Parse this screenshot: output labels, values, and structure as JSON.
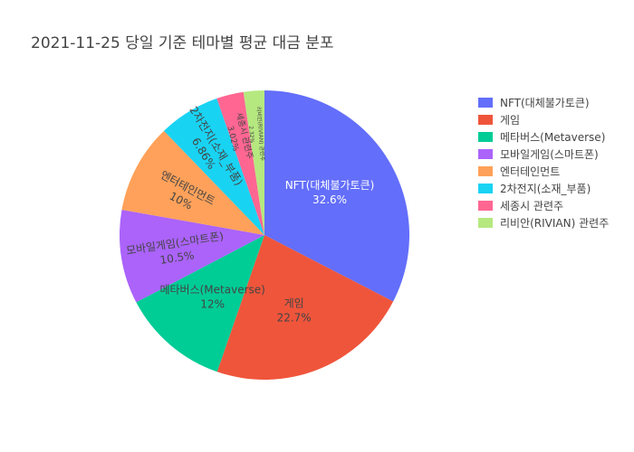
{
  "chart_data": {
    "type": "pie",
    "title": "2021-11-25 당일 기준 테마별 평균 대금 분포",
    "slices": [
      {
        "label": "NFT(대체불가토큰)",
        "value": 32.6,
        "text": "32.6%",
        "color": "#636efa"
      },
      {
        "label": "게임",
        "value": 22.7,
        "text": "22.7%",
        "color": "#EF553B"
      },
      {
        "label": "메타버스(Metaverse)",
        "value": 12,
        "text": "12%",
        "color": "#00cc96"
      },
      {
        "label": "모바일게임(스마트폰)",
        "value": 10.5,
        "text": "10.5%",
        "color": "#ab63fa"
      },
      {
        "label": "엔터테인먼트",
        "value": 10,
        "text": "10%",
        "color": "#FFA15A"
      },
      {
        "label": "2차전지(소재_부품)",
        "value": 6.86,
        "text": "6.86%",
        "color": "#19d3f3"
      },
      {
        "label": "세종시 관련주",
        "value": 3.02,
        "text": "3.02%",
        "color": "#FF6692"
      },
      {
        "label": "리비안(RIVIAN) 관련주",
        "value": 2.32,
        "text": "2.32%",
        "color": "#B6E880"
      }
    ],
    "legend_position": "right"
  }
}
